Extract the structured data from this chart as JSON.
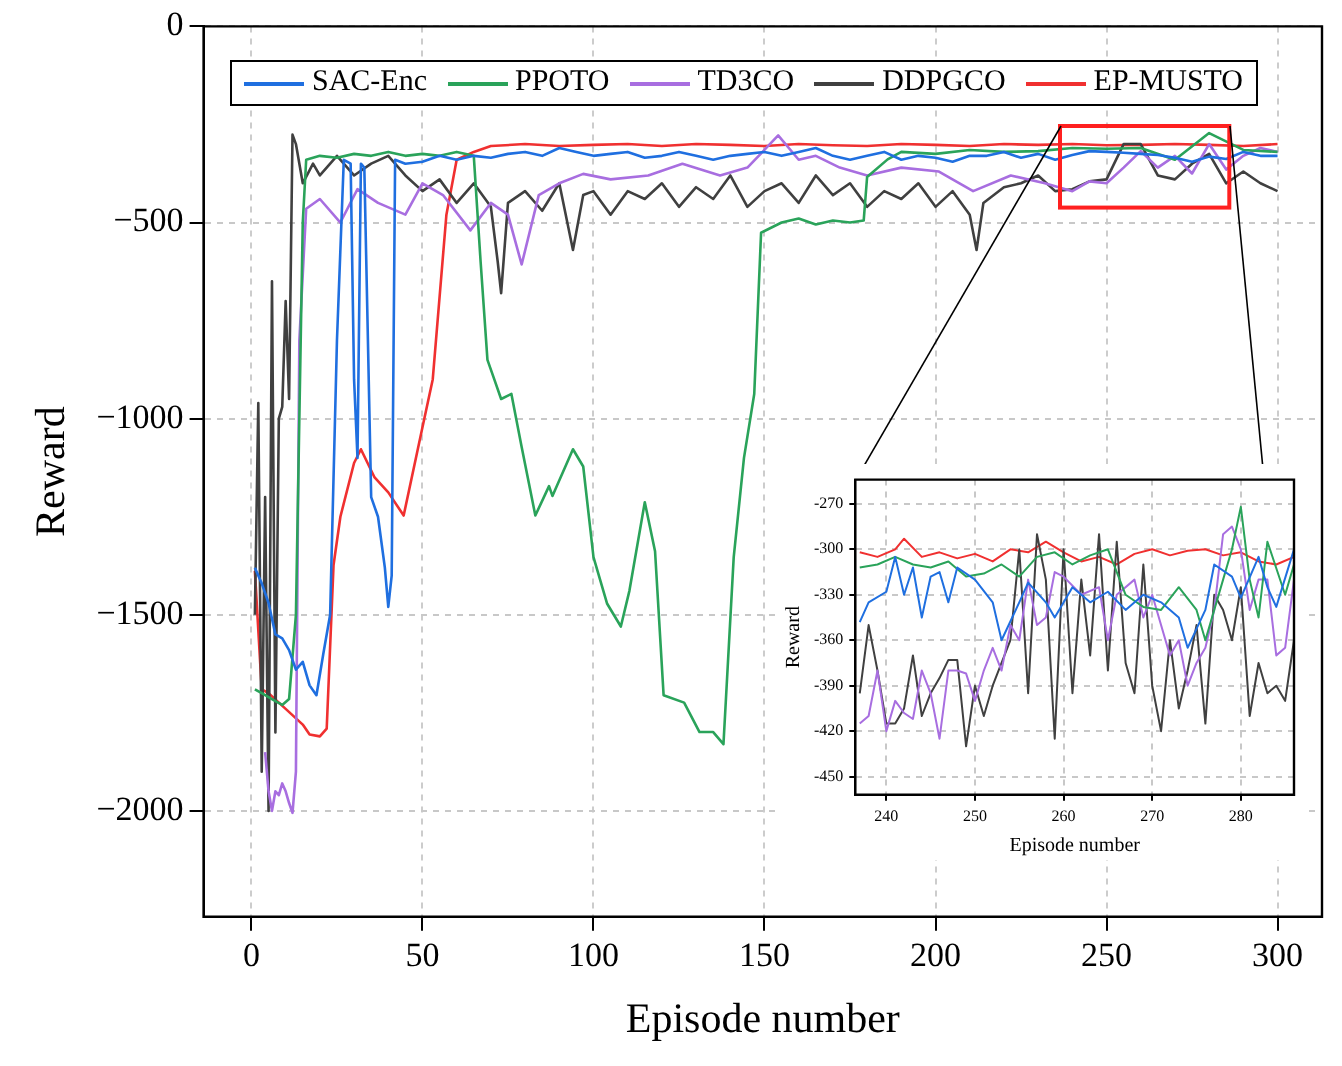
{
  "chart_data": [
    {
      "type": "line",
      "xlabel": "Episode number",
      "ylabel": "Reward",
      "xlim": [
        -14,
        313
      ],
      "ylim": [
        -2270,
        0
      ],
      "xticks": [
        0,
        50,
        100,
        150,
        200,
        250,
        300
      ],
      "yticks": [
        0,
        {
          "value": -500,
          "label": "−500"
        },
        {
          "value": -1000,
          "label": "−1000"
        },
        {
          "value": -1500,
          "label": "−1500"
        },
        {
          "value": -2000,
          "label": "−2000"
        }
      ],
      "grid": true,
      "legend": "top",
      "series": [
        {
          "name": "SAC-Enc",
          "color": "#1f6fe0",
          "x": [
            1,
            3,
            5,
            7,
            9,
            11,
            13,
            15,
            17,
            19,
            21,
            23,
            25,
            27,
            29,
            30,
            31,
            32,
            33,
            35,
            37,
            39,
            40,
            41,
            42,
            45,
            50,
            55,
            60,
            65,
            70,
            75,
            80,
            85,
            90,
            95,
            100,
            105,
            110,
            115,
            120,
            125,
            130,
            135,
            140,
            145,
            150,
            155,
            160,
            165,
            170,
            175,
            180,
            185,
            190,
            195,
            200,
            205,
            210,
            215,
            220,
            225,
            230,
            235,
            240,
            245,
            250,
            255,
            260,
            265,
            270,
            275,
            280,
            285,
            290,
            295,
            300
          ],
          "values": [
            -1380,
            -1420,
            -1470,
            -1550,
            -1560,
            -1590,
            -1640,
            -1620,
            -1680,
            -1705,
            -1600,
            -1500,
            -800,
            -340,
            -350,
            -900,
            -1100,
            -350,
            -360,
            -1200,
            -1250,
            -1380,
            -1480,
            -1400,
            -340,
            -350,
            -345,
            -330,
            -340,
            -330,
            -335,
            -325,
            -320,
            -330,
            -310,
            -320,
            -330,
            -325,
            -320,
            -335,
            -330,
            -320,
            -330,
            -340,
            -330,
            -325,
            -320,
            -330,
            -320,
            -310,
            -330,
            -340,
            -330,
            -320,
            -340,
            -330,
            -335,
            -345,
            -330,
            -330,
            -320,
            -335,
            -325,
            -340,
            -328,
            -318,
            -320,
            -322,
            -325,
            -328,
            -335,
            -345,
            -332,
            -338,
            -320,
            -330,
            -330
          ]
        },
        {
          "name": "PPOTO",
          "color": "#2aa35a",
          "x": [
            1,
            3,
            5,
            7,
            9,
            11,
            13,
            15,
            16,
            20,
            25,
            30,
            35,
            40,
            45,
            50,
            55,
            60,
            65,
            67,
            69,
            71,
            73,
            76,
            79,
            83,
            87,
            88,
            94,
            97,
            100,
            104,
            108,
            110.5,
            115,
            118,
            120.5,
            126.5,
            131,
            135,
            138,
            141,
            144,
            147,
            149,
            155,
            160,
            165,
            170,
            175,
            179,
            180,
            186,
            190,
            200,
            210,
            220,
            230,
            240,
            250,
            260,
            270,
            280,
            290,
            300
          ],
          "values": [
            -1690,
            -1700,
            -1710,
            -1720,
            -1730,
            -1715,
            -1500,
            -500,
            -340,
            -330,
            -335,
            -325,
            -330,
            -320,
            -330,
            -325,
            -330,
            -320,
            -330,
            -600,
            -850,
            -900,
            -950,
            -937,
            -1072,
            -1247,
            -1172,
            -1197,
            -1078,
            -1122,
            -1353,
            -1472,
            -1530,
            -1439,
            -1213,
            -1338,
            -1705,
            -1724,
            -1799,
            -1799,
            -1830,
            -1353,
            -1100,
            -937,
            -526,
            -500,
            -490,
            -505,
            -495,
            -500,
            -495,
            -384,
            -339,
            -320,
            -325,
            -315,
            -320,
            -318,
            -310,
            -312,
            -310,
            -340,
            -272,
            -315,
            -320
          ]
        },
        {
          "name": "TD3CO",
          "color": "#a86ee0",
          "x": [
            4,
            5,
            6,
            7,
            8,
            9,
            10,
            11,
            12,
            13,
            14,
            16,
            20,
            26,
            31,
            37,
            45,
            50,
            56,
            64,
            70,
            75,
            79,
            84,
            90,
            97,
            105,
            116,
            126,
            137,
            145,
            154,
            160,
            165,
            172,
            180,
            190,
            201,
            211,
            222,
            232,
            240,
            245,
            250,
            255,
            260,
            265,
            270,
            275,
            280,
            285,
            290,
            295,
            300
          ],
          "values": [
            -1850,
            -1950,
            -2000,
            -1950,
            -1960,
            -1930,
            -1950,
            -1980,
            -2005,
            -1900,
            -800,
            -465,
            -440,
            -500,
            -415,
            -450,
            -480,
            -400,
            -430,
            -520,
            -450,
            -480,
            -607,
            -430,
            -400,
            -376,
            -390,
            -380,
            -350,
            -380,
            -360,
            -278,
            -340,
            -330,
            -360,
            -380,
            -360,
            -370,
            -420,
            -380,
            -400,
            -420,
            -395,
            -400,
            -360,
            -318,
            -360,
            -330,
            -375,
            -300,
            -365,
            -330,
            -310,
            -320
          ]
        },
        {
          "name": "DDPGCO",
          "color": "#404040",
          "x": [
            1,
            2,
            3,
            4,
            5,
            6,
            7,
            8,
            9,
            10,
            11,
            12,
            13,
            15,
            18,
            20,
            25,
            30,
            35,
            40,
            45,
            50,
            55,
            60,
            65,
            70,
            72,
            73,
            75,
            80,
            85,
            90,
            94,
            97,
            100,
            105,
            110,
            115,
            120,
            125,
            130,
            135,
            140,
            145,
            150,
            155,
            160,
            165,
            170,
            175,
            180,
            185,
            190,
            195,
            200,
            205,
            210,
            212,
            214,
            220,
            225,
            230,
            235,
            240,
            245,
            250,
            255,
            260,
            265,
            270,
            275,
            280,
            285,
            290,
            295,
            300
          ],
          "values": [
            -1500,
            -960,
            -1900,
            -1200,
            -2000,
            -650,
            -1800,
            -1000,
            -970,
            -700,
            -950,
            -276,
            -300,
            -400,
            -350,
            -380,
            -330,
            -380,
            -350,
            -330,
            -380,
            -420,
            -390,
            -450,
            -400,
            -460,
            -600,
            -680,
            -450,
            -420,
            -470,
            -400,
            -570,
            -430,
            -420,
            -480,
            -420,
            -440,
            -400,
            -460,
            -410,
            -440,
            -380,
            -460,
            -420,
            -400,
            -450,
            -380,
            -430,
            -400,
            -460,
            -420,
            -440,
            -400,
            -460,
            -420,
            -480,
            -570,
            -450,
            -410,
            -400,
            -380,
            -420,
            -415,
            -395,
            -390,
            -300,
            -300,
            -380,
            -390,
            -350,
            -325,
            -400,
            -370,
            -400,
            -420
          ]
        },
        {
          "name": "EP-MUSTO",
          "color": "#f03030",
          "x": [
            1,
            3,
            5,
            10,
            15,
            17,
            20,
            22,
            24,
            26,
            30,
            32,
            36,
            40,
            44.5,
            50,
            53,
            57,
            60,
            65,
            70,
            80,
            90,
            100,
            110,
            120,
            130,
            140,
            150,
            160,
            170,
            180,
            190,
            200,
            210,
            220,
            230,
            240,
            250,
            260,
            270,
            280,
            290,
            300
          ],
          "values": [
            -1388,
            -1690,
            -1700,
            -1740,
            -1780,
            -1805,
            -1810,
            -1790,
            -1373,
            -1250,
            -1113,
            -1078,
            -1150,
            -1188,
            -1247,
            -1022,
            -900,
            -480,
            -340,
            -320,
            -305,
            -300,
            -305,
            -302,
            -300,
            -305,
            -300,
            -302,
            -305,
            -300,
            -303,
            -305,
            -300,
            -302,
            -305,
            -300,
            -302,
            -300,
            -303,
            -302,
            -300,
            -302,
            -305,
            -300
          ]
        }
      ]
    },
    {
      "type": "line",
      "xlabel": "Episode number",
      "ylabel": "Reward",
      "xlim": [
        236.5,
        286
      ],
      "ylim": [
        -462,
        -254
      ],
      "xticks": [
        240,
        250,
        260,
        270,
        280
      ],
      "yticks": [
        -270,
        -300,
        -330,
        -360,
        -390,
        -420,
        -450
      ],
      "grid": true,
      "series": [
        {
          "color": "#1f6fe0",
          "x": [
            237,
            238,
            240,
            241,
            242,
            243,
            244,
            245,
            246,
            247,
            248,
            250,
            252,
            253,
            255,
            256,
            258,
            259,
            261,
            263,
            265,
            267,
            269,
            271,
            273,
            274,
            276,
            277,
            279,
            280,
            282,
            283,
            284,
            286
          ],
          "values": [
            -348,
            -335,
            -328,
            -305,
            -330,
            -312,
            -345,
            -318,
            -315,
            -335,
            -312,
            -320,
            -335,
            -360,
            -335,
            -322,
            -335,
            -345,
            -325,
            -335,
            -328,
            -340,
            -330,
            -335,
            -345,
            -365,
            -340,
            -310,
            -318,
            -332,
            -305,
            -325,
            -338,
            -300
          ]
        },
        {
          "color": "#2aa35a",
          "x": [
            237,
            239,
            241,
            243,
            245,
            247,
            249,
            251,
            253,
            255,
            257,
            259,
            261,
            263,
            265,
            267,
            269,
            271,
            273,
            275,
            276,
            278,
            279,
            280,
            281,
            282,
            283,
            285,
            286
          ],
          "values": [
            -312,
            -310,
            -305,
            -310,
            -312,
            -308,
            -318,
            -316,
            -310,
            -318,
            -305,
            -302,
            -310,
            -304,
            -300,
            -330,
            -338,
            -340,
            -325,
            -340,
            -360,
            -320,
            -300,
            -272,
            -320,
            -345,
            -295,
            -330,
            -310
          ]
        },
        {
          "color": "#a86ee0",
          "x": [
            237,
            238,
            239,
            240,
            241,
            242,
            243,
            244,
            245,
            246,
            247,
            248,
            249,
            250,
            251,
            252,
            253,
            254,
            255,
            256,
            257,
            258,
            259,
            260,
            262,
            264,
            265,
            266,
            268,
            269,
            270,
            272,
            273,
            274,
            275,
            276,
            277,
            278,
            279,
            280,
            281,
            282,
            283,
            284,
            285,
            286
          ],
          "values": [
            -415,
            -410,
            -380,
            -420,
            -400,
            -408,
            -412,
            -380,
            -395,
            -425,
            -380,
            -380,
            -382,
            -400,
            -380,
            -365,
            -380,
            -350,
            -360,
            -320,
            -350,
            -345,
            -315,
            -318,
            -330,
            -325,
            -360,
            -330,
            -320,
            -345,
            -330,
            -370,
            -360,
            -390,
            -375,
            -365,
            -340,
            -290,
            -285,
            -300,
            -340,
            -320,
            -320,
            -370,
            -365,
            -320
          ]
        },
        {
          "color": "#404040",
          "x": [
            237,
            238,
            239,
            240,
            241,
            242,
            243,
            244,
            245,
            246,
            247,
            248,
            249,
            250,
            251,
            252,
            253,
            254,
            255,
            256,
            257,
            258,
            259,
            260,
            261,
            262,
            263,
            264,
            265,
            266,
            267,
            268,
            269,
            270,
            271,
            272,
            273,
            274,
            275,
            276,
            277,
            278,
            279,
            280,
            281,
            282,
            283,
            284,
            285,
            286
          ],
          "values": [
            -395,
            -350,
            -380,
            -415,
            -415,
            -405,
            -370,
            -410,
            -395,
            -385,
            -373,
            -373,
            -430,
            -390,
            -410,
            -390,
            -375,
            -360,
            -300,
            -395,
            -290,
            -320,
            -425,
            -300,
            -395,
            -320,
            -370,
            -290,
            -380,
            -295,
            -375,
            -395,
            -310,
            -390,
            -420,
            -360,
            -405,
            -380,
            -350,
            -415,
            -330,
            -340,
            -360,
            -325,
            -410,
            -375,
            -395,
            -390,
            -400,
            -360
          ]
        },
        {
          "color": "#f03030",
          "x": [
            237,
            239,
            241,
            242,
            244,
            246,
            248,
            250,
            252,
            254,
            256,
            258,
            260,
            262,
            264,
            266,
            268,
            270,
            272,
            274,
            276,
            278,
            280,
            282,
            284,
            286
          ],
          "values": [
            -302,
            -305,
            -300,
            -293,
            -305,
            -302,
            -306,
            -303,
            -308,
            -300,
            -302,
            -295,
            -302,
            -308,
            -305,
            -310,
            -303,
            -300,
            -304,
            -301,
            -300,
            -304,
            -302,
            -308,
            -310,
            -305
          ]
        }
      ]
    }
  ]
}
